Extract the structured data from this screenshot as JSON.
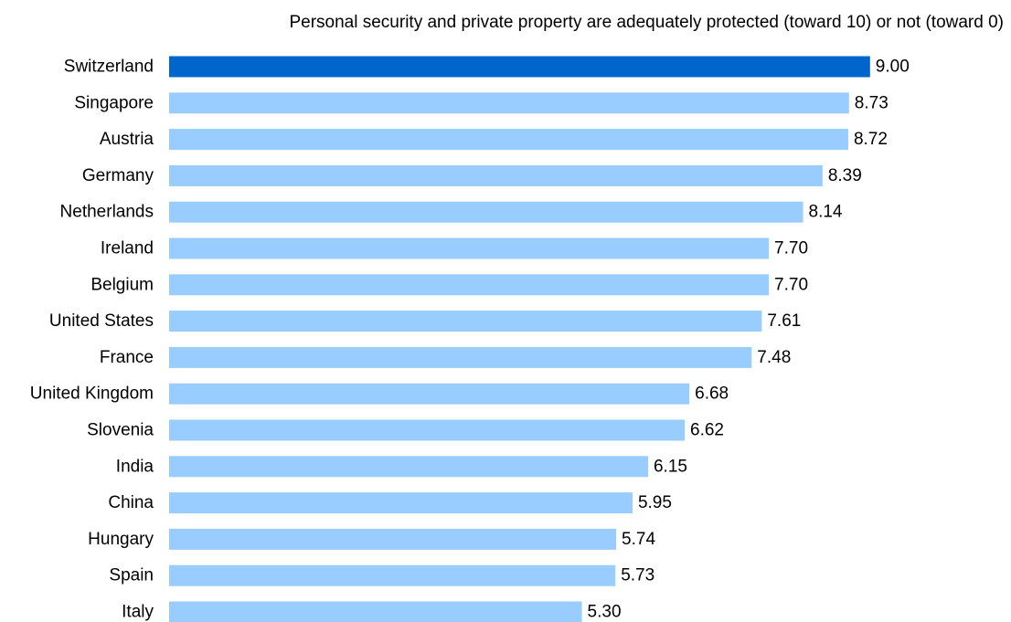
{
  "chart_data": {
    "type": "bar",
    "orientation": "horizontal",
    "title": "Personal security and private property are adequately protected (toward 10) or not (toward 0)",
    "categories": [
      "Switzerland",
      "Singapore",
      "Austria",
      "Germany",
      "Netherlands",
      "Ireland",
      "Belgium",
      "United States",
      "France",
      "United Kingdom",
      "Slovenia",
      "India",
      "China",
      "Hungary",
      "Spain",
      "Italy"
    ],
    "values": [
      9.0,
      8.73,
      8.72,
      8.39,
      8.14,
      7.7,
      7.7,
      7.61,
      7.48,
      6.68,
      6.62,
      6.15,
      5.95,
      5.74,
      5.73,
      5.3
    ],
    "value_labels": [
      "9.00",
      "8.73",
      "8.72",
      "8.39",
      "8.14",
      "7.70",
      "7.70",
      "7.61",
      "7.48",
      "6.68",
      "6.62",
      "6.15",
      "5.95",
      "5.74",
      "5.73",
      "5.30"
    ],
    "highlight_index": 0,
    "colors": {
      "highlight": "#0066cc",
      "bar": "#99ccff"
    },
    "xlim": [
      0,
      10
    ],
    "xlabel": "",
    "ylabel": "",
    "grid": false,
    "legend": "none"
  }
}
